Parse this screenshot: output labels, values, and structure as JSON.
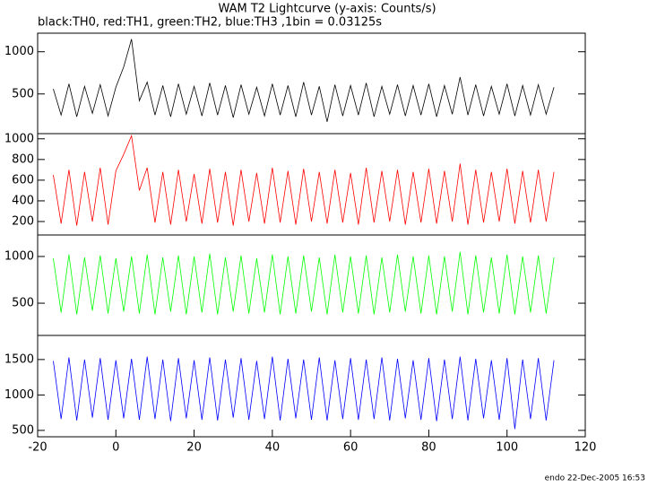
{
  "footer": "endo 22-Dec-2005 16:53",
  "chart_data": [
    {
      "type": "line",
      "title": "WAM T2 Lightcurve (y-axis: Counts/s)",
      "subtitle": "black:TH0, red:TH1, green:TH2, blue:TH3 ,1bin = 0.03125s",
      "x": [
        -16,
        -14,
        -12,
        -10,
        -8,
        -6,
        -4,
        -2,
        0,
        2,
        4,
        6,
        8,
        10,
        12,
        14,
        16,
        18,
        20,
        22,
        24,
        26,
        28,
        30,
        32,
        34,
        36,
        38,
        40,
        42,
        44,
        46,
        48,
        50,
        52,
        54,
        56,
        58,
        60,
        62,
        64,
        66,
        68,
        70,
        72,
        74,
        76,
        78,
        80,
        82,
        84,
        86,
        88,
        90,
        92,
        94,
        96,
        98,
        100,
        102,
        104,
        106,
        108,
        110,
        112
      ],
      "values": [
        560,
        250,
        620,
        230,
        590,
        270,
        610,
        240,
        580,
        820,
        1150,
        420,
        640,
        250,
        600,
        230,
        620,
        260,
        590,
        240,
        630,
        250,
        600,
        220,
        610,
        260,
        580,
        240,
        620,
        250,
        600,
        230,
        640,
        250,
        590,
        170,
        610,
        240,
        600,
        250,
        630,
        230,
        590,
        260,
        610,
        240,
        600,
        250,
        620,
        230,
        600,
        260,
        700,
        250,
        610,
        240,
        590,
        260,
        620,
        240,
        600,
        250,
        610,
        260,
        580
      ],
      "color": "#000000",
      "xlim": [
        -20,
        120
      ],
      "ylim": [
        30,
        1220
      ],
      "yticks": [
        500,
        1000
      ]
    },
    {
      "type": "line",
      "x": [
        -16,
        -14,
        -12,
        -10,
        -8,
        -6,
        -4,
        -2,
        0,
        2,
        4,
        6,
        8,
        10,
        12,
        14,
        16,
        18,
        20,
        22,
        24,
        26,
        28,
        30,
        32,
        34,
        36,
        38,
        40,
        42,
        44,
        46,
        48,
        50,
        52,
        54,
        56,
        58,
        60,
        62,
        64,
        66,
        68,
        70,
        72,
        74,
        76,
        78,
        80,
        82,
        84,
        86,
        88,
        90,
        92,
        94,
        96,
        98,
        100,
        102,
        104,
        106,
        108,
        110,
        112
      ],
      "values": [
        650,
        180,
        700,
        160,
        680,
        200,
        720,
        170,
        690,
        850,
        1030,
        500,
        720,
        190,
        680,
        170,
        700,
        200,
        660,
        180,
        710,
        190,
        680,
        160,
        700,
        200,
        670,
        180,
        720,
        190,
        690,
        170,
        710,
        200,
        680,
        180,
        700,
        190,
        670,
        170,
        720,
        190,
        690,
        200,
        700,
        170,
        680,
        190,
        710,
        180,
        690,
        200,
        760,
        170,
        700,
        190,
        680,
        200,
        710,
        180,
        690,
        190,
        700,
        200,
        680
      ],
      "color": "#ff0000",
      "xlim": [
        -20,
        120
      ],
      "ylim": [
        70,
        1050
      ],
      "yticks": [
        200,
        400,
        600,
        800,
        1000
      ]
    },
    {
      "type": "line",
      "x": [
        -16,
        -14,
        -12,
        -10,
        -8,
        -6,
        -4,
        -2,
        0,
        2,
        4,
        6,
        8,
        10,
        12,
        14,
        16,
        18,
        20,
        22,
        24,
        26,
        28,
        30,
        32,
        34,
        36,
        38,
        40,
        42,
        44,
        46,
        48,
        50,
        52,
        54,
        56,
        58,
        60,
        62,
        64,
        66,
        68,
        70,
        72,
        74,
        76,
        78,
        80,
        82,
        84,
        86,
        88,
        90,
        92,
        94,
        96,
        98,
        100,
        102,
        104,
        106,
        108,
        110,
        112
      ],
      "values": [
        980,
        400,
        1020,
        380,
        990,
        420,
        1010,
        390,
        980,
        410,
        1000,
        390,
        1020,
        380,
        990,
        410,
        1010,
        380,
        1000,
        400,
        1030,
        380,
        990,
        410,
        1010,
        390,
        980,
        400,
        1020,
        380,
        1000,
        390,
        1010,
        410,
        990,
        380,
        1020,
        400,
        1000,
        390,
        1010,
        380,
        990,
        400,
        1020,
        410,
        1000,
        390,
        1010,
        380,
        1000,
        410,
        1050,
        380,
        1010,
        400,
        990,
        390,
        1020,
        380,
        1000,
        400,
        1010,
        390,
        990
      ],
      "color": "#00ff00",
      "xlim": [
        -20,
        120
      ],
      "ylim": [
        155,
        1230
      ],
      "yticks": [
        500,
        1000
      ]
    },
    {
      "type": "line",
      "x": [
        -16,
        -14,
        -12,
        -10,
        -8,
        -6,
        -4,
        -2,
        0,
        2,
        4,
        6,
        8,
        10,
        12,
        14,
        16,
        18,
        20,
        22,
        24,
        26,
        28,
        30,
        32,
        34,
        36,
        38,
        40,
        42,
        44,
        46,
        48,
        50,
        52,
        54,
        56,
        58,
        60,
        62,
        64,
        66,
        68,
        70,
        72,
        74,
        76,
        78,
        80,
        82,
        84,
        86,
        88,
        90,
        92,
        94,
        96,
        98,
        100,
        102,
        104,
        106,
        108,
        110,
        112
      ],
      "values": [
        1480,
        660,
        1530,
        640,
        1500,
        680,
        1520,
        650,
        1490,
        670,
        1510,
        650,
        1540,
        660,
        1500,
        630,
        1520,
        670,
        1490,
        650,
        1530,
        640,
        1500,
        680,
        1520,
        650,
        1480,
        660,
        1540,
        640,
        1510,
        670,
        1500,
        650,
        1530,
        640,
        1490,
        660,
        1520,
        650,
        1500,
        660,
        1530,
        640,
        1510,
        670,
        1490,
        650,
        1520,
        630,
        1500,
        660,
        1540,
        640,
        1510,
        670,
        1490,
        650,
        1520,
        520,
        1500,
        660,
        1520,
        640,
        1490
      ],
      "color": "#0000ff",
      "xlim": [
        -20,
        120
      ],
      "ylim": [
        410,
        1840
      ],
      "yticks": [
        500,
        1000,
        1500
      ],
      "xticks": [
        -20,
        0,
        20,
        40,
        60,
        80,
        100,
        120
      ]
    }
  ]
}
